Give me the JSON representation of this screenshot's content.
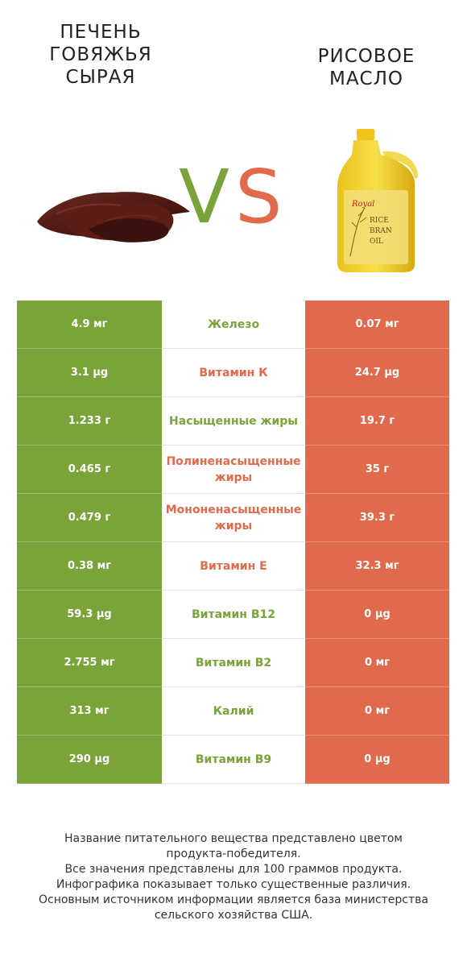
{
  "product_left": {
    "title": "ПЕЧЕНЬ ГОВЯЖЬЯ СЫРАЯ",
    "color": "#7aa33a"
  },
  "product_right": {
    "title": "РИСОВОЕ МАСЛО",
    "color": "#e06a4b"
  },
  "vs": {
    "v": "V",
    "s": "S"
  },
  "bottle_label": {
    "brand": "Royal",
    "line1": "RICE",
    "line2": "BRAN",
    "line3": "OIL"
  },
  "rows": [
    {
      "left": "4.9 мг",
      "name": "Железо",
      "right": "0.07 мг",
      "winner": "left"
    },
    {
      "left": "3.1 µg",
      "name": "Витамин К",
      "right": "24.7 µg",
      "winner": "right"
    },
    {
      "left": "1.233 г",
      "name": "Насыщенные жиры",
      "right": "19.7 г",
      "winner": "left"
    },
    {
      "left": "0.465 г",
      "name": "Полиненасыщенные жиры",
      "right": "35 г",
      "winner": "right"
    },
    {
      "left": "0.479 г",
      "name": "Мононенасыщенные жиры",
      "right": "39.3 г",
      "winner": "right"
    },
    {
      "left": "0.38 мг",
      "name": "Витамин Е",
      "right": "32.3 мг",
      "winner": "right"
    },
    {
      "left": "59.3 µg",
      "name": "Витамин В12",
      "right": "0 µg",
      "winner": "left"
    },
    {
      "left": "2.755 мг",
      "name": "Витамин В2",
      "right": "0 мг",
      "winner": "left"
    },
    {
      "left": "313 мг",
      "name": "Калий",
      "right": "0 мг",
      "winner": "left"
    },
    {
      "left": "290 µg",
      "name": "Витамин В9",
      "right": "0 µg",
      "winner": "left"
    }
  ],
  "footer": [
    "Название питательного вещества представлено цветом",
    "продукта-победителя.",
    "Все значения представлены для 100 граммов продукта.",
    "Инфографика показывает только существенные различия.",
    "Основным источником информации является база министерства",
    "сельского хозяйства США."
  ]
}
